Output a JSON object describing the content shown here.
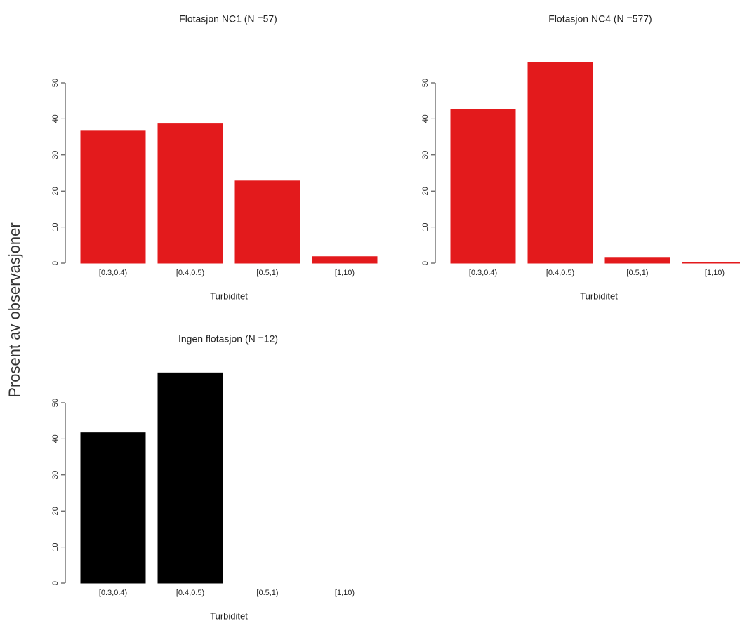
{
  "ylabel": "Prosent av observasjoner",
  "chart_data": [
    {
      "type": "bar",
      "title": "Flotasjon NC1 (N =57)",
      "xlabel": "Turbiditet",
      "categories": [
        "[0.3,0.4)",
        "[0.4,0.5)",
        "[0.5,1)",
        "[1,10)"
      ],
      "values": [
        36.8,
        38.6,
        22.8,
        1.8
      ],
      "color": "#e31a1c",
      "ylim": [
        0,
        60
      ],
      "yticks": [
        0,
        10,
        20,
        30,
        40,
        50
      ]
    },
    {
      "type": "bar",
      "title": "Flotasjon NC4 (N =577)",
      "xlabel": "Turbiditet",
      "categories": [
        "[0.3,0.4)",
        "[0.4,0.5)",
        "[0.5,1)",
        "[1,10)"
      ],
      "values": [
        42.6,
        55.6,
        1.6,
        0.2
      ],
      "color": "#e31a1c",
      "ylim": [
        0,
        60
      ],
      "yticks": [
        0,
        10,
        20,
        30,
        40,
        50
      ]
    },
    {
      "type": "bar",
      "title": "Ingen flotasjon (N =12)",
      "xlabel": "Turbiditet",
      "categories": [
        "[0.3,0.4)",
        "[0.4,0.5)",
        "[0.5,1)",
        "[1,10)"
      ],
      "values": [
        41.7,
        58.3,
        0,
        0
      ],
      "color": "#000000",
      "ylim": [
        0,
        60
      ],
      "yticks": [
        0,
        10,
        20,
        30,
        40,
        50
      ]
    }
  ]
}
